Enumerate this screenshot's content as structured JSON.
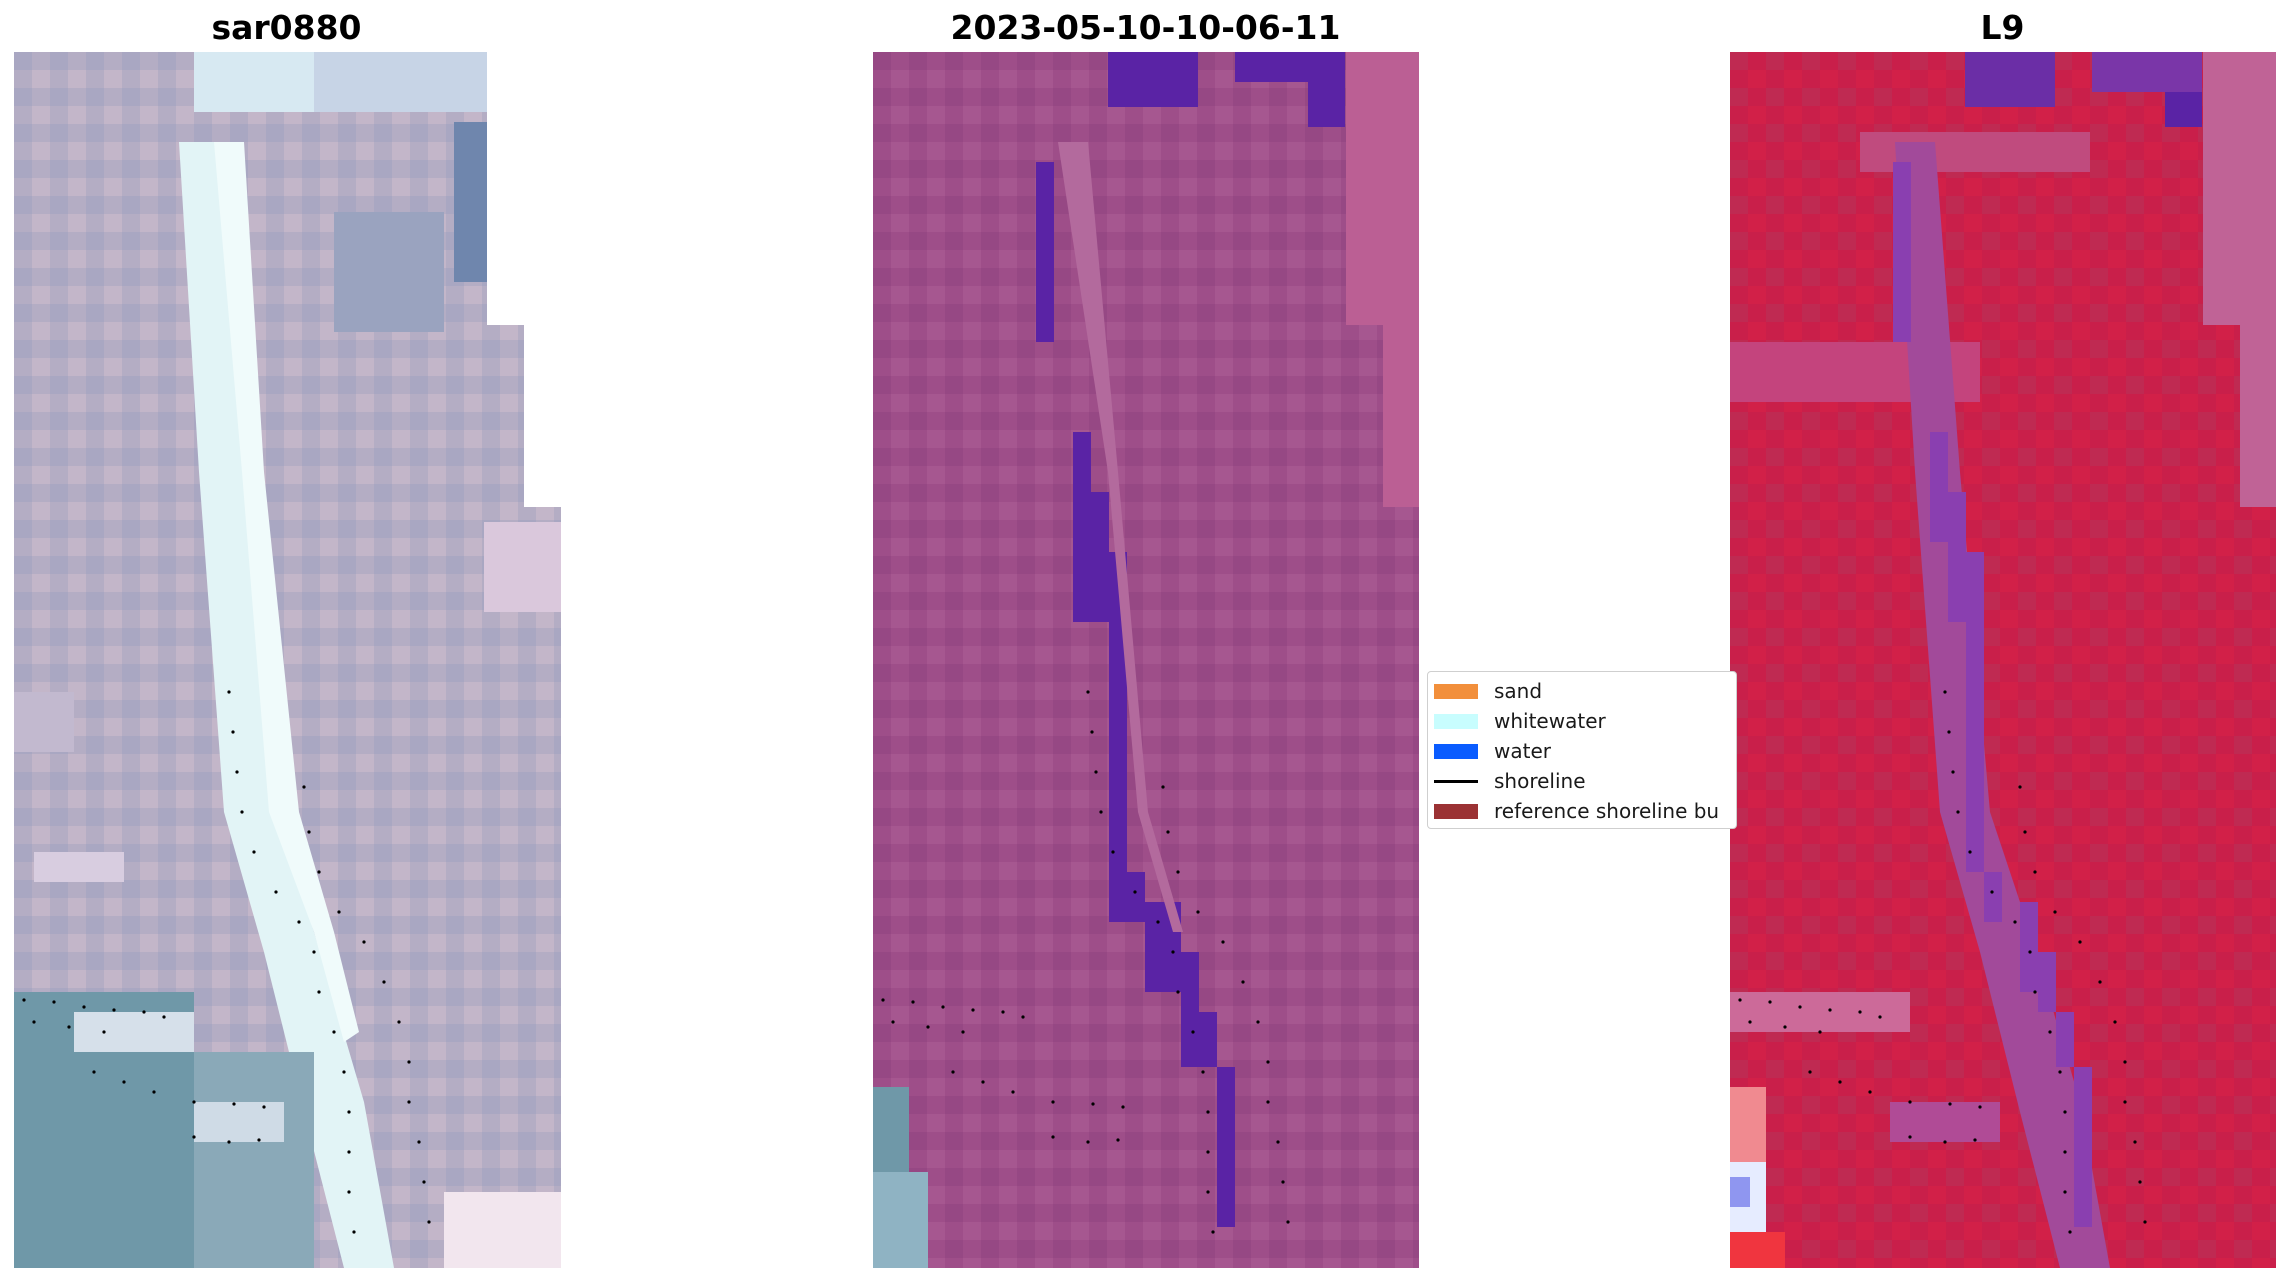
{
  "panels": [
    {
      "title": "sar0880"
    },
    {
      "title": "2023-05-10-10-06-11"
    },
    {
      "title": "L9"
    }
  ],
  "legend": {
    "items": [
      {
        "label": "sand",
        "color": "#f28f3b",
        "kind": "patch"
      },
      {
        "label": "whitewater",
        "color": "#c8fdfe",
        "kind": "patch"
      },
      {
        "label": "water",
        "color": "#0a5cff",
        "kind": "patch"
      },
      {
        "label": "shoreline",
        "color": "#000000",
        "kind": "line"
      },
      {
        "label": "reference shoreline bu",
        "color": "#9b3234",
        "kind": "patch"
      }
    ]
  },
  "colors": {
    "rgb_base": "#b4adc4",
    "rgb_channel": "#e2f4f6",
    "rgb_sea": "#6f98a8",
    "class_base": "#9e4e89",
    "class_water": "#5a23a5",
    "class_nodata": "#bb5f94",
    "mndwi_base": "#c91f4a",
    "mndwi_channel": "#8a3fb0",
    "mndwi_nodata": "#c06396"
  }
}
